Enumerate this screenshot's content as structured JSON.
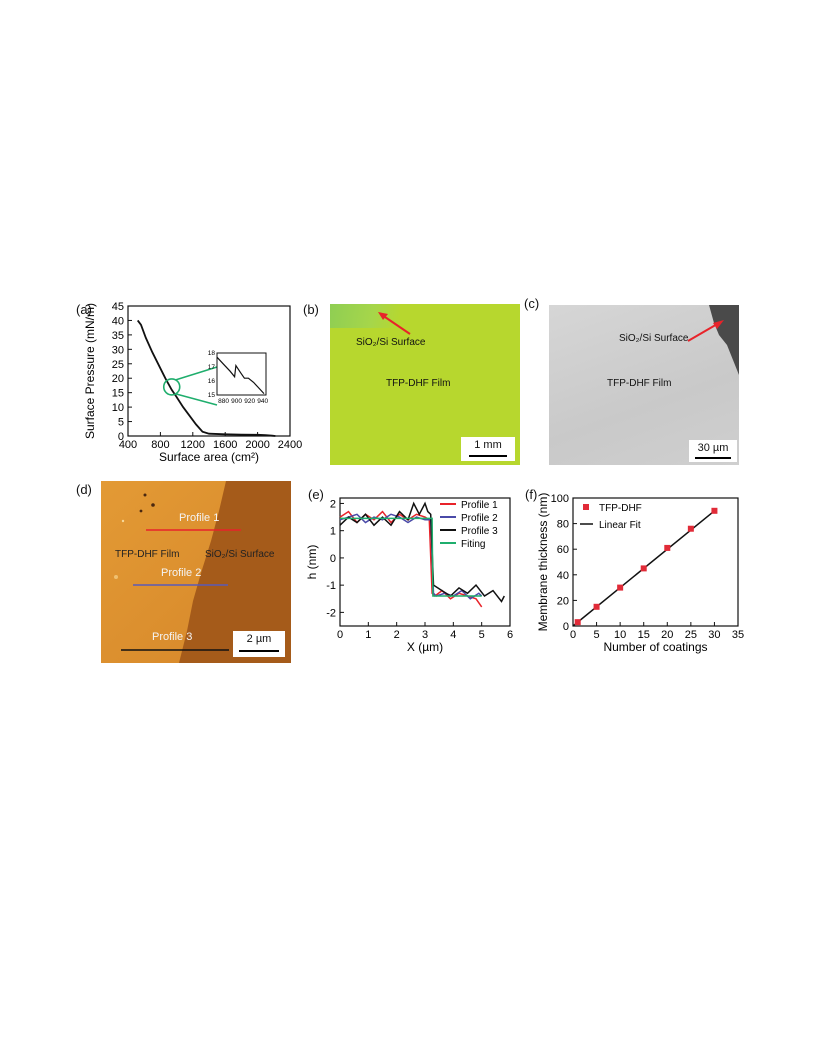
{
  "panels": {
    "a": {
      "label": "(a)",
      "chart_data": {
        "type": "line",
        "xlabel": "Surface area (cm²)",
        "ylabel": "Surface Pressure (mN/m)",
        "xlim": [
          400,
          2400
        ],
        "ylim": [
          0,
          45
        ],
        "xticks": [
          "400",
          "800",
          "1200",
          "1600",
          "2000",
          "2400"
        ],
        "yticks": [
          "0",
          "5",
          "10",
          "15",
          "20",
          "25",
          "30",
          "35",
          "40",
          "45"
        ],
        "series": [
          {
            "x": [
              520,
              560,
              620,
              700,
              780,
              860,
              940,
              1000,
              1080,
              1160,
              1240,
              1320,
              1400,
              1600,
              1800,
              2000,
              2100,
              2180,
              2220
            ],
            "y": [
              40,
              38.5,
              34,
              29,
              24.5,
              20,
              16,
              13.5,
              10,
              7,
              4,
              1.5,
              0.8,
              0.6,
              0.5,
              0.4,
              0.3,
              0.1,
              0
            ]
          }
        ],
        "inset": {
          "xticks": [
            "880",
            "900",
            "920",
            "940"
          ],
          "yticks": [
            "15",
            "16",
            "17",
            "18"
          ],
          "xlim": [
            870,
            945
          ],
          "ylim": [
            15,
            18
          ],
          "x": [
            870,
            880,
            890,
            897,
            899,
            906,
            912,
            918,
            926,
            934,
            942
          ],
          "y": [
            17.7,
            17.2,
            16.7,
            16.3,
            17.1,
            16.6,
            16.2,
            16.2,
            15.9,
            15.5,
            15.1
          ]
        }
      }
    },
    "b": {
      "label": "(b)",
      "surface": "SiO₂/Si Surface",
      "film": "TFP-DHF Film",
      "scale": "1 mm",
      "color": "#b7d72e"
    },
    "c": {
      "label": "(c)",
      "surface": "SiO₂/Si Surface",
      "film": "TFP-DHF Film",
      "scale": "30 µm"
    },
    "d": {
      "label": "(d)",
      "profile1": "Profile 1",
      "profile2": "Profile 2",
      "profile3": "Profile 3",
      "film": "TFP-DHF Film",
      "surface": "SiO₂/Si Surface",
      "scale": "2 µm"
    },
    "e": {
      "label": "(e)",
      "chart_data": {
        "type": "line",
        "xlabel": "X (µm)",
        "ylabel": "h (nm)",
        "xlim": [
          0,
          6
        ],
        "ylim": [
          -2.5,
          2.2
        ],
        "xticks": [
          "0",
          "1",
          "2",
          "3",
          "4",
          "5",
          "6"
        ],
        "yticks": [
          "-2",
          "-1",
          "0",
          "1",
          "2"
        ],
        "series": [
          {
            "name": "Profile 1",
            "color": "#e8232a",
            "x": [
              0,
              0.3,
              0.6,
              0.9,
              1.2,
              1.5,
              1.8,
              2.1,
              2.4,
              2.7,
              3.0,
              3.15,
              3.25,
              3.35,
              3.6,
              3.9,
              4.2,
              4.5,
              4.8,
              5.0
            ],
            "y": [
              1.5,
              1.7,
              1.3,
              1.6,
              1.4,
              1.7,
              1.3,
              1.6,
              1.4,
              1.6,
              1.5,
              1.4,
              -1.3,
              -1.4,
              -1.2,
              -1.5,
              -1.3,
              -1.4,
              -1.5,
              -1.8
            ]
          },
          {
            "name": "Profile 2",
            "color": "#4a4aa8",
            "x": [
              0,
              0.3,
              0.6,
              0.9,
              1.2,
              1.5,
              1.8,
              2.1,
              2.4,
              2.7,
              3.0,
              3.2,
              3.3,
              3.4,
              3.7,
              4.0,
              4.3,
              4.6,
              4.9,
              5.0
            ],
            "y": [
              1.4,
              1.5,
              1.6,
              1.3,
              1.5,
              1.4,
              1.6,
              1.5,
              1.3,
              1.5,
              1.4,
              1.4,
              -1.3,
              -1.4,
              -1.3,
              -1.4,
              -1.2,
              -1.5,
              -1.3,
              -1.4
            ]
          },
          {
            "name": "Profile 3",
            "color": "#111111",
            "x": [
              0,
              0.3,
              0.6,
              0.9,
              1.2,
              1.5,
              1.8,
              2.1,
              2.4,
              2.6,
              2.8,
              3.0,
              3.1,
              3.2,
              3.3,
              3.6,
              3.9,
              4.2,
              4.5,
              4.8,
              5.1,
              5.4,
              5.7,
              5.8
            ],
            "y": [
              1.2,
              1.5,
              1.3,
              1.6,
              1.2,
              1.5,
              1.2,
              1.7,
              1.4,
              2.0,
              1.6,
              2.0,
              1.7,
              1.6,
              -1.0,
              -1.2,
              -1.4,
              -1.1,
              -1.3,
              -1.0,
              -1.4,
              -1.2,
              -1.6,
              -1.4
            ]
          },
          {
            "name": "Fiting",
            "color": "#1fae6d",
            "x": [
              0,
              3.25,
              3.28,
              5.0
            ],
            "y": [
              1.45,
              1.45,
              -1.4,
              -1.4
            ]
          }
        ]
      }
    },
    "f": {
      "label": "(f)",
      "chart_data": {
        "type": "scatter",
        "xlabel": "Number of coatings",
        "ylabel": "Membrane thickness (nm)",
        "xlim": [
          0,
          35
        ],
        "ylim": [
          0,
          100
        ],
        "xticks": [
          "0",
          "5",
          "10",
          "15",
          "20",
          "25",
          "30",
          "35"
        ],
        "yticks": [
          "0",
          "20",
          "40",
          "60",
          "80",
          "100"
        ],
        "series": [
          {
            "name": "TFP-DHF",
            "color": "#e12b38",
            "x": [
              1,
              5,
              10,
              15,
              20,
              25,
              30
            ],
            "y": [
              3,
              15,
              30,
              45,
              61,
              76,
              90
            ]
          },
          {
            "name": "Linear Fit",
            "color": "#111111",
            "x": [
              0,
              30.5
            ],
            "y": [
              0,
              91.5
            ]
          }
        ]
      }
    }
  }
}
